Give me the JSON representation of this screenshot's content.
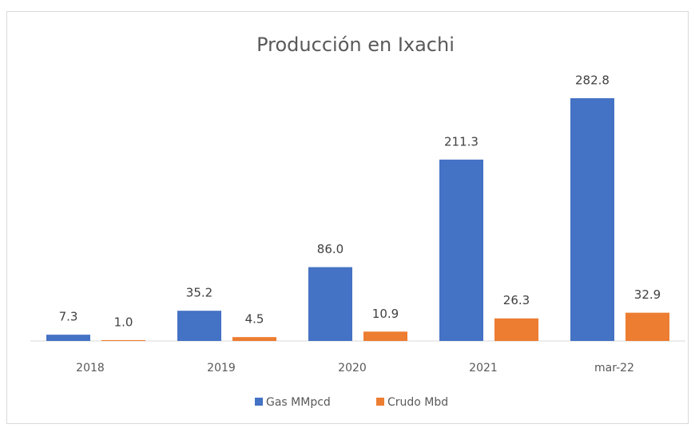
{
  "chart_data": {
    "type": "bar",
    "title": "Producción en Ixachi",
    "categories": [
      "2018",
      "2019",
      "2020",
      "2021",
      "mar-22"
    ],
    "series": [
      {
        "name": "Gas MMpcd",
        "color": "#4472c4",
        "values": [
          7.3,
          35.2,
          86.0,
          211.3,
          282.8
        ],
        "value_labels": [
          "7.3",
          "35.2",
          "86.0",
          "211.3",
          "282.8"
        ]
      },
      {
        "name": "Crudo Mbd",
        "color": "#ed7d31",
        "values": [
          1.0,
          4.5,
          10.9,
          26.3,
          32.9
        ],
        "value_labels": [
          "1.0",
          "4.5",
          "10.9",
          "26.3",
          "32.9"
        ]
      }
    ],
    "legend": "bottom"
  }
}
